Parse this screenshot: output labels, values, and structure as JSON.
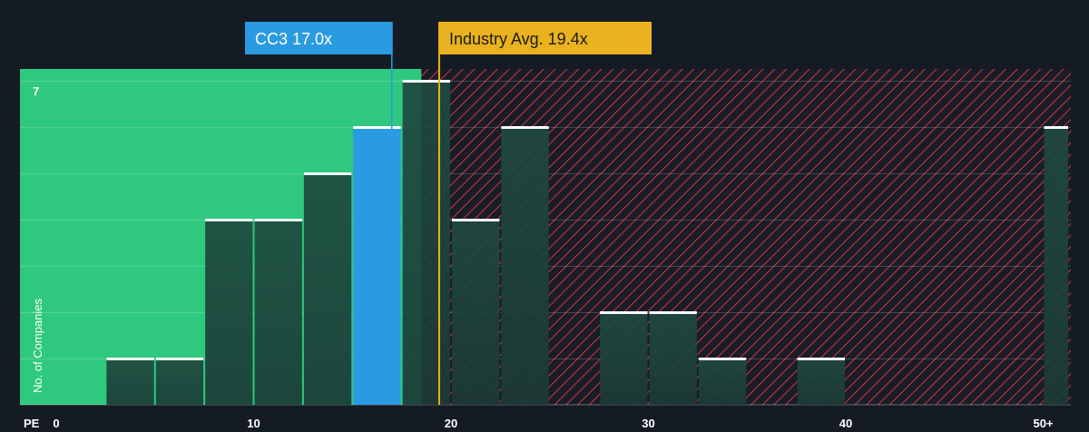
{
  "chart_data": {
    "type": "bar",
    "xlabel": "PE",
    "ylabel": "No. of Companies",
    "x_tick_labels": [
      "0",
      "10",
      "20",
      "30",
      "40",
      "50+"
    ],
    "x_tick_values": [
      0,
      10,
      20,
      30,
      40,
      50
    ],
    "xlim": [
      -2.5,
      51.2
    ],
    "ylim": [
      0,
      7.15
    ],
    "y_tick_labels": [
      "7"
    ],
    "bins": [
      {
        "x0": 2.5,
        "x1": 5.0,
        "count": 1
      },
      {
        "x0": 5.0,
        "x1": 7.5,
        "count": 1
      },
      {
        "x0": 7.5,
        "x1": 10.0,
        "count": 4
      },
      {
        "x0": 10.0,
        "x1": 12.5,
        "count": 4
      },
      {
        "x0": 12.5,
        "x1": 15.0,
        "count": 5
      },
      {
        "x0": 15.0,
        "x1": 17.5,
        "count": 6,
        "highlight": true
      },
      {
        "x0": 17.5,
        "x1": 20.0,
        "count": 7
      },
      {
        "x0": 20.0,
        "x1": 22.5,
        "count": 4
      },
      {
        "x0": 22.5,
        "x1": 25.0,
        "count": 6
      },
      {
        "x0": 27.5,
        "x1": 30.0,
        "count": 2
      },
      {
        "x0": 30.0,
        "x1": 32.5,
        "count": 2
      },
      {
        "x0": 32.5,
        "x1": 35.0,
        "count": 1
      },
      {
        "x0": 37.5,
        "x1": 40.0,
        "count": 1
      },
      {
        "x0": 50.0,
        "x1": 52.5,
        "count": 6
      }
    ],
    "company": {
      "label": "CC3 17.0x",
      "value": 17.0
    },
    "industry": {
      "label": "Industry Avg. 19.4x",
      "value": 19.4
    },
    "grid": true,
    "colors": {
      "background": "#151b24",
      "good_zone": "#2ec97e",
      "bad_hatch": "#c93a48",
      "bar": "#1e4a3f",
      "bar_highlight": "#2a9be0",
      "bar_top": "#ffffff",
      "company_callout": "#2a9be0",
      "industry_callout": "#e9b21e"
    }
  }
}
